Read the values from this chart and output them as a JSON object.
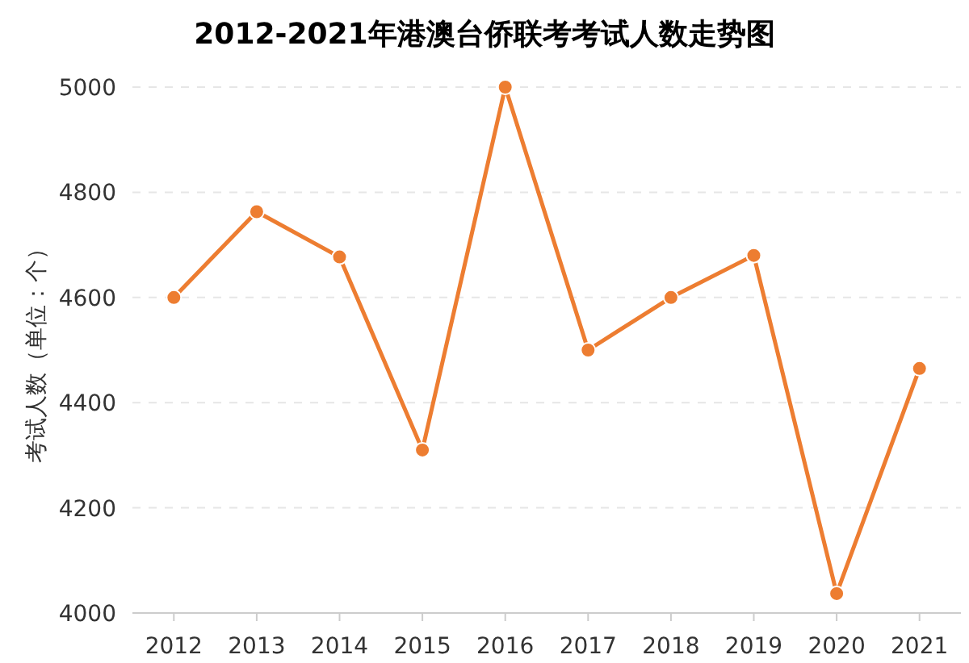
{
  "chart_data": {
    "type": "line",
    "title": "2012-2021年港澳台侨联考考试人数走势图",
    "ylabel": "考试人数（单位：个）",
    "categories": [
      "2012",
      "2013",
      "2014",
      "2015",
      "2016",
      "2017",
      "2018",
      "2019",
      "2020",
      "2021"
    ],
    "series": [
      {
        "color": "#ed7d31",
        "values": [
          4600,
          4763,
          4677,
          4310,
          5000,
          4500,
          4600,
          4680,
          4037,
          4465
        ]
      }
    ],
    "ylim": [
      4000,
      5000
    ],
    "yticks": [
      4000,
      4200,
      4400,
      4600,
      4800,
      5000
    ],
    "grid": "y",
    "marker": "circle",
    "line_style": "solid"
  }
}
